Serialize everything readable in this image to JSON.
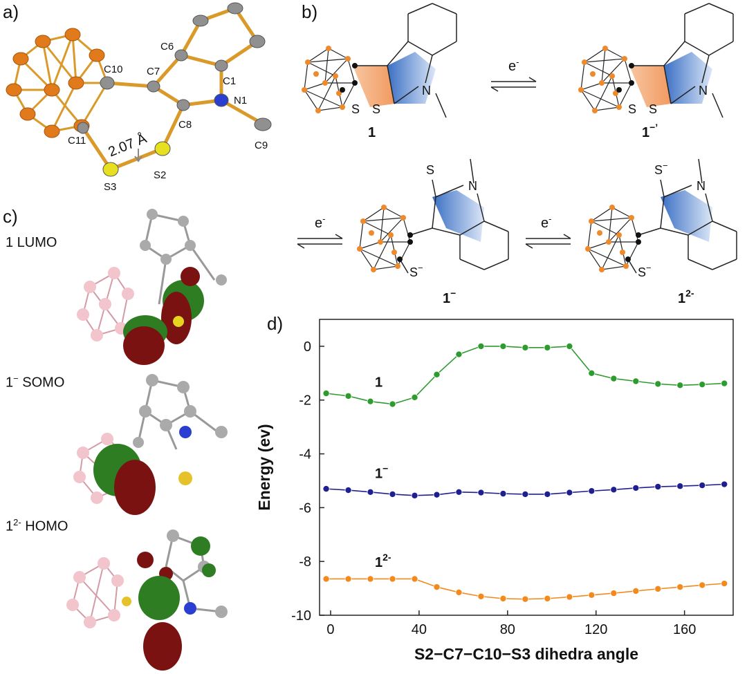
{
  "panels": {
    "a": "a)",
    "b": "b)",
    "c": "c)",
    "d": "d)"
  },
  "structure_a": {
    "atoms": [
      "C10",
      "C7",
      "C6",
      "C1",
      "N1",
      "C8",
      "C11",
      "S3",
      "S2",
      "C9"
    ],
    "distance": "2.07 Å"
  },
  "scheme_b": {
    "electron": "e",
    "electron_sup": "-",
    "compounds": {
      "c1": "1",
      "c1r_main": "1",
      "c1r_sup": "−’",
      "c1m_main": "1",
      "c1m_sup": "−",
      "c12_main": "1",
      "c12_sup": "2-"
    },
    "atoms": {
      "S": "S",
      "N": "N",
      "Sminus": "S",
      "minus": "−"
    }
  },
  "orbitals_c": {
    "lumo": "1 LUMO",
    "somo_main": "1",
    "somo_sup": "−",
    "somo_tail": " SOMO",
    "homo_main": "1",
    "homo_sup": "2-",
    "homo_tail": " HOMO"
  },
  "chart_data": {
    "type": "line",
    "xlabel": "S2−C7−C10−S3 dihedra angle",
    "ylabel": "Energy (ev)",
    "xlim": [
      -5,
      182
    ],
    "ylim": [
      -10,
      1
    ],
    "xticks": [
      0,
      40,
      80,
      120,
      160
    ],
    "yticks": [
      0,
      -2,
      -4,
      -6,
      -8,
      -10
    ],
    "x": [
      -2,
      8,
      18,
      28,
      38,
      48,
      58,
      68,
      78,
      88,
      98,
      108,
      118,
      128,
      138,
      148,
      158,
      168,
      178
    ],
    "series": [
      {
        "name": "1",
        "color": "#2e9b2e",
        "values": [
          -1.75,
          -1.85,
          -2.05,
          -2.15,
          -1.9,
          -1.05,
          -0.3,
          0.0,
          0.0,
          -0.05,
          -0.05,
          0.0,
          -1.0,
          -1.2,
          -1.3,
          -1.4,
          -1.45,
          -1.42,
          -1.38
        ]
      },
      {
        "name": "1 −",
        "color": "#1f1f8f",
        "values": [
          -5.3,
          -5.35,
          -5.42,
          -5.5,
          -5.55,
          -5.52,
          -5.42,
          -5.44,
          -5.48,
          -5.5,
          -5.5,
          -5.44,
          -5.38,
          -5.33,
          -5.27,
          -5.22,
          -5.2,
          -5.17,
          -5.13
        ]
      },
      {
        "name": "1 2-",
        "color": "#f28a1e",
        "values": [
          -8.65,
          -8.65,
          -8.65,
          -8.65,
          -8.65,
          -8.95,
          -9.15,
          -9.3,
          -9.38,
          -9.4,
          -9.38,
          -9.32,
          -9.25,
          -9.18,
          -9.1,
          -9.02,
          -8.95,
          -8.88,
          -8.82
        ]
      }
    ],
    "series_labels": {
      "s1": "1",
      "s2_main": "1",
      "s2_sup": "−",
      "s3_main": "1",
      "s3_sup": "2-"
    }
  }
}
